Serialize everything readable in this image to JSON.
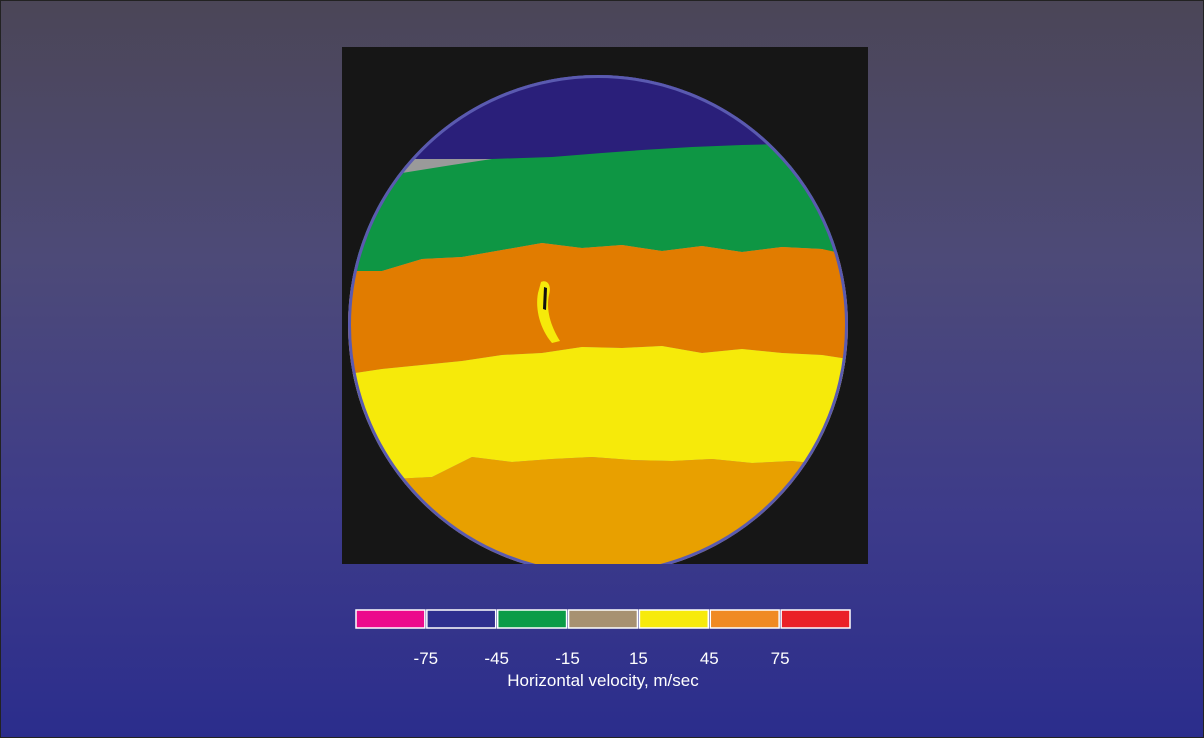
{
  "chart_data": {
    "type": "heatmap",
    "title": "",
    "xlabel": "Horizontal velocity, m/sec",
    "colorbar": {
      "bins": [
        {
          "range": [
            -105,
            -75
          ],
          "color": "#ec0a8c"
        },
        {
          "range": [
            -75,
            -45
          ],
          "color": "#2e2f8e"
        },
        {
          "range": [
            -45,
            -15
          ],
          "color": "#0b9c47"
        },
        {
          "range": [
            -15,
            15
          ],
          "color": "#a79171"
        },
        {
          "range": [
            15,
            45
          ],
          "color": "#f7ea0c"
        },
        {
          "range": [
            45,
            75
          ],
          "color": "#f08a23"
        },
        {
          "range": [
            75,
            105
          ],
          "color": "#ea2127"
        }
      ],
      "tick_values": [
        -75,
        -45,
        -15,
        15,
        45,
        75
      ],
      "tick_labels": [
        "-75",
        "-45",
        "-15",
        "15",
        "45",
        "75"
      ]
    },
    "disk_bands": [
      {
        "name": "dark-blue-band",
        "velocity_range": [
          -75,
          -45
        ],
        "color": "#2a1f7a"
      },
      {
        "name": "green-band",
        "velocity_range": [
          -45,
          -15
        ],
        "color": "#0e9644"
      },
      {
        "name": "dark-orange-band",
        "velocity_range": [
          45,
          75
        ],
        "color": "#e17c00"
      },
      {
        "name": "yellow-band",
        "velocity_range": [
          15,
          45
        ],
        "color": "#f6ea0a"
      },
      {
        "name": "light-orange-band",
        "velocity_range": [
          45,
          75
        ],
        "color": "#e8a000"
      }
    ]
  },
  "colors": {
    "panel_background": "#161616",
    "limb": "#9a9a9a"
  }
}
